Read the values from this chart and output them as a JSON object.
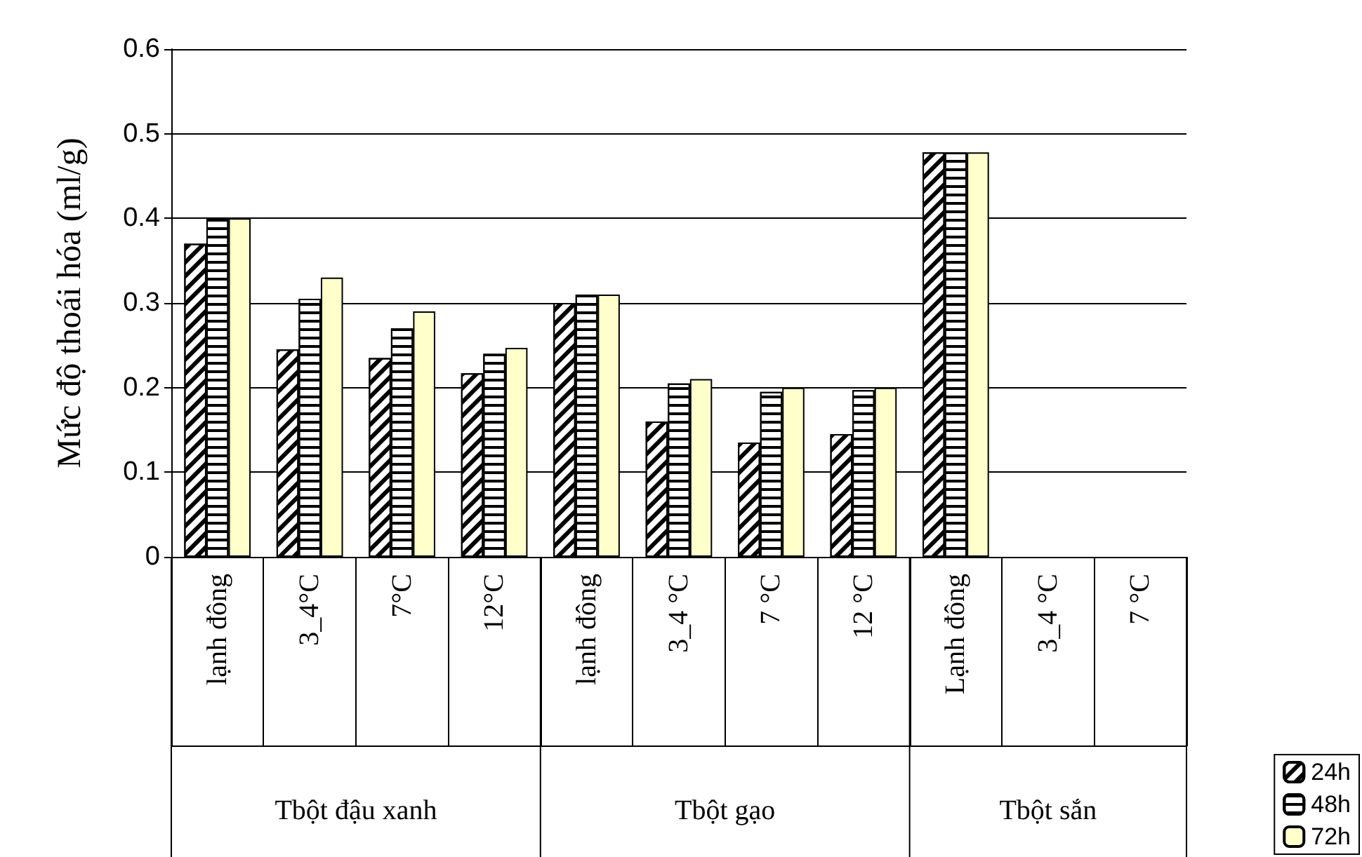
{
  "chart_data": {
    "type": "bar",
    "ylabel": "Mức độ thoái hóa (ml/g)",
    "categories": [
      "lạnh đông",
      "3_4°C",
      "7°C",
      "12°C",
      "lạnh đông",
      "3_4 °C",
      "7 °C",
      "12 °C",
      "Lạnh đông",
      "3_4 °C",
      "7 °C"
    ],
    "series": [
      {
        "name": "24h",
        "color": "#ffffff",
        "values": [
          0.37,
          0.245,
          0.235,
          0.217,
          0.3,
          0.16,
          0.135,
          0.145,
          0.478,
          null,
          null
        ]
      },
      {
        "name": "48h",
        "color": "#ffffff",
        "values": [
          0.4,
          0.305,
          0.27,
          0.24,
          0.31,
          0.205,
          0.195,
          0.197,
          0.478,
          null,
          null
        ]
      },
      {
        "name": "72h",
        "color": "#ffffcc",
        "values": [
          0.4,
          0.33,
          0.29,
          0.247,
          0.31,
          0.21,
          0.2,
          0.2,
          0.478,
          null,
          null
        ]
      }
    ],
    "annotations": [
      "Tbột đậu xanh",
      "Tbột gạo",
      "Tbột sắn"
    ],
    "ylim": [
      0,
      0.6
    ],
    "yticks": [
      0,
      0.1,
      0.2,
      0.3,
      0.4,
      0.5,
      0.6
    ],
    "grid": "y",
    "legend": "bottom right"
  }
}
